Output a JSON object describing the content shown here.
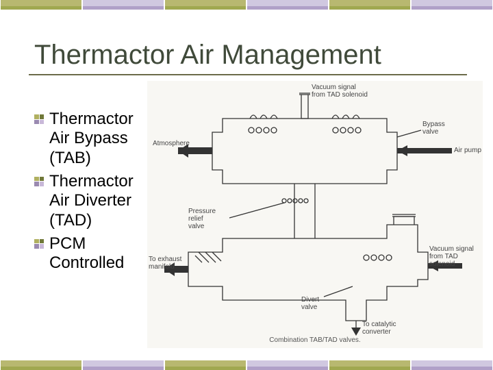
{
  "title": "Thermactor Air Management",
  "bullets": [
    "Thermactor Air Bypass (TAB)",
    "Thermactor Air Diverter (TAD)",
    "PCM Controlled"
  ],
  "bullet_colors": [
    "#b0b060",
    "#707838",
    "#9a8ab0",
    "#c8b8d8"
  ],
  "bar_colors": [
    "#b8b870",
    "#a0a850",
    "#d0c8e0",
    "#b0a0c8"
  ],
  "diagram": {
    "labels": {
      "vacuum_top": "Vacuum signal\nfrom TAD solenoid",
      "atmosphere": "Atmosphere",
      "bypass_valve": "Bypass\nvalve",
      "pressure_relief": "Pressure\nrelief\nvalve",
      "air_pump": "Air pump",
      "exhaust_manifold": "To exhaust\nmanifold",
      "vacuum_side": "Vacuum signal\nfrom TAD solenoid",
      "divert_valve": "Divert\nvalve",
      "catalytic": "To catalytic\nconverter"
    },
    "caption": "Combination TAB/TAD valves.",
    "stroke": "#333333",
    "bg": "#f8f7f3"
  }
}
